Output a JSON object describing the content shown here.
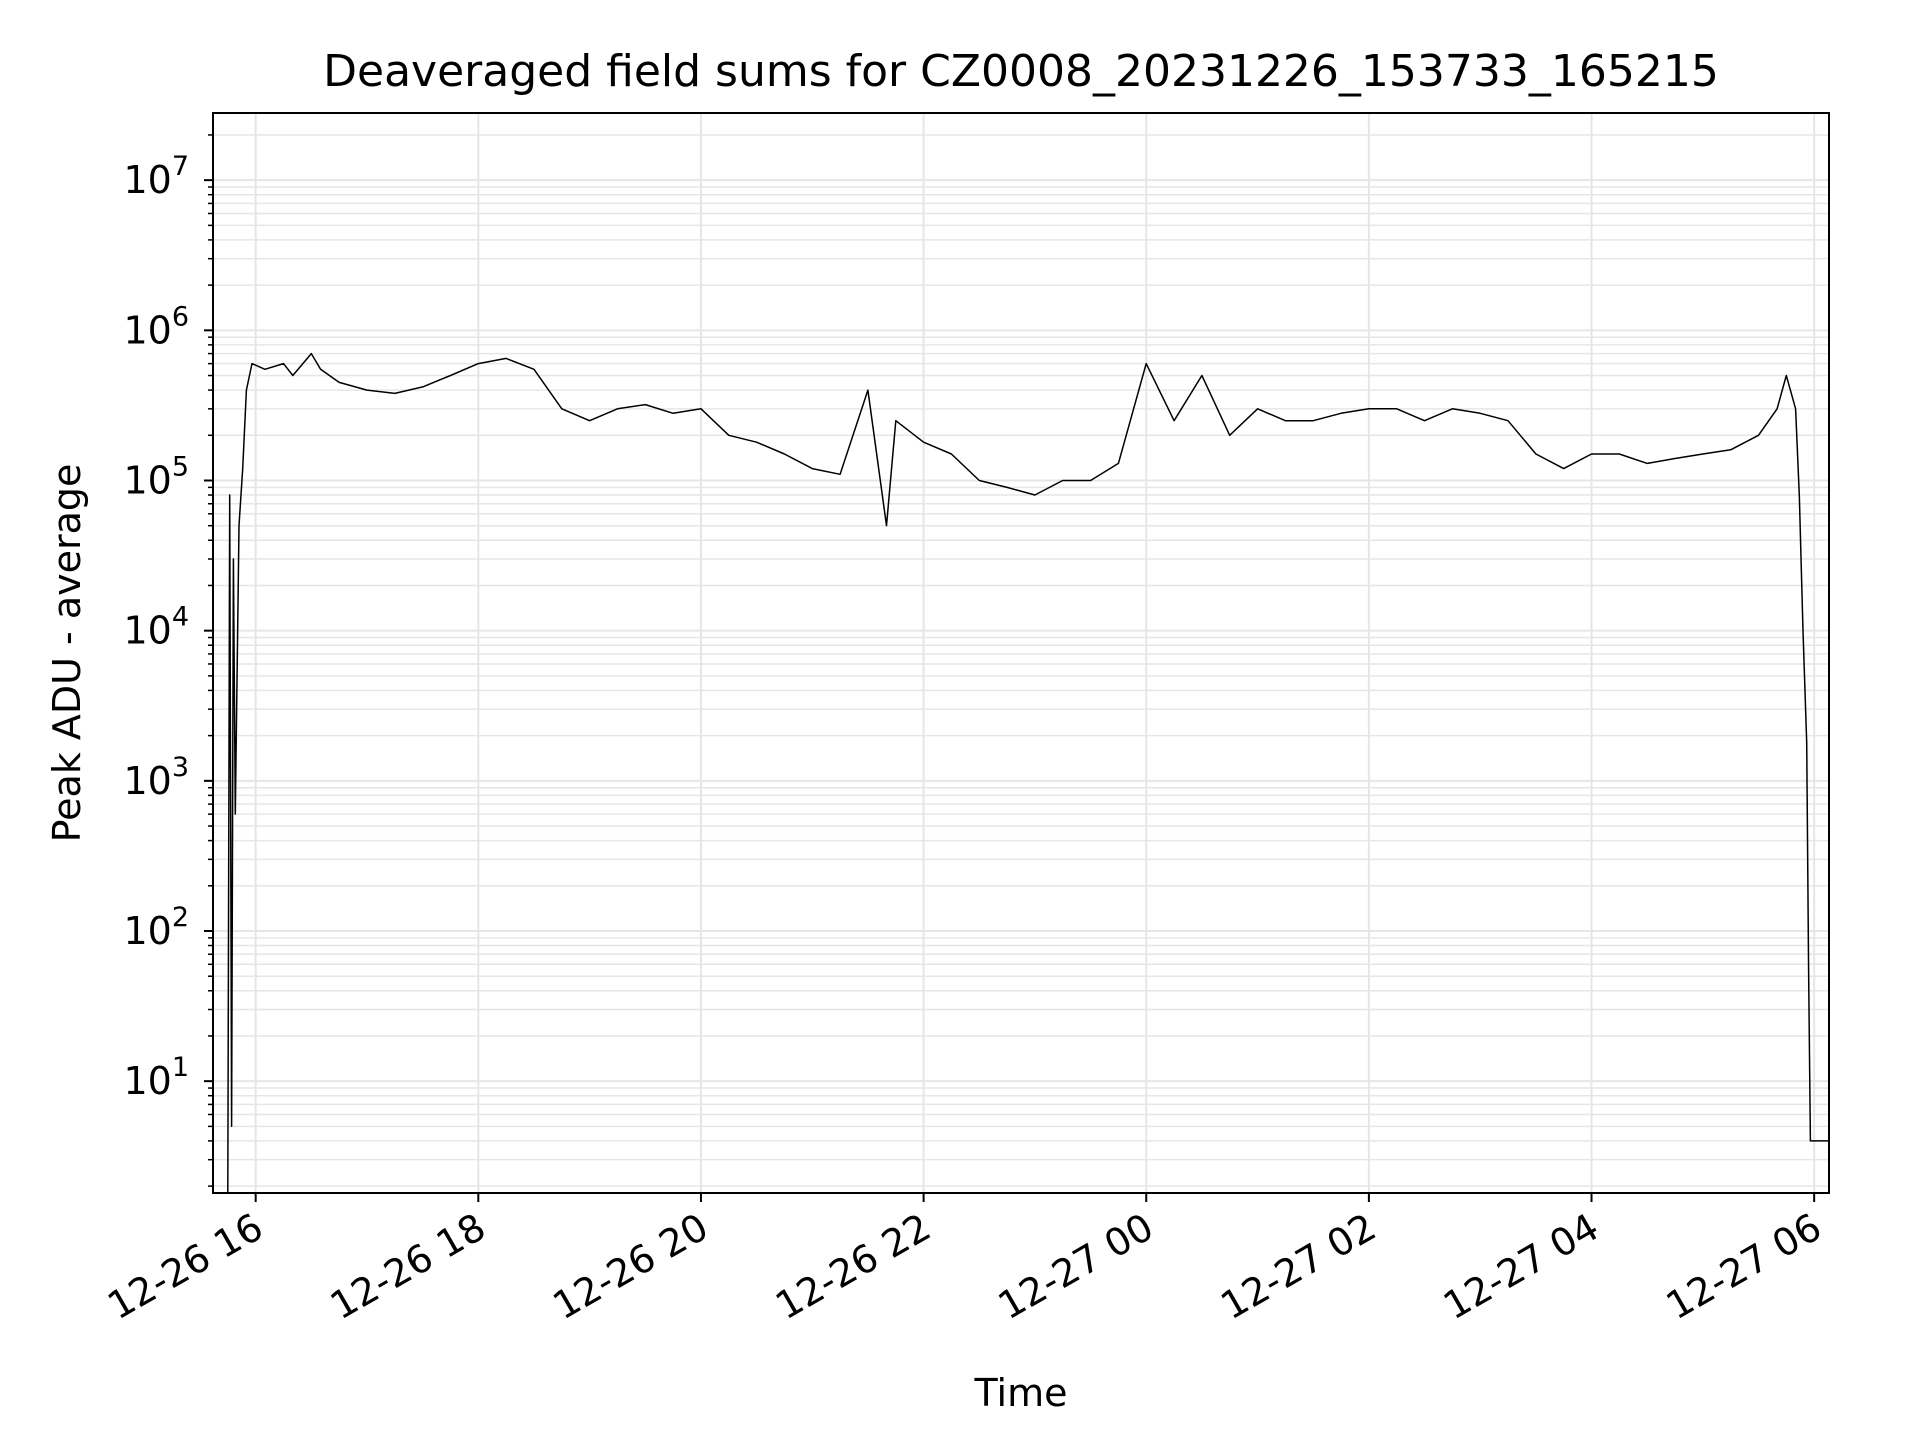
{
  "chart_data": {
    "type": "line",
    "title": "Deaveraged field sums for CZ0008_20231226_153733_165215",
    "xlabel": "Time",
    "ylabel": "Peak ADU - average",
    "yscale": "log",
    "grid": true,
    "line_color": "#000000",
    "grid_color": "#e6e6e6",
    "xlim": [
      "2023-12-26 15:37",
      "2023-12-27 06:08"
    ],
    "ylim": [
      1.8,
      28000000
    ],
    "x_ticks": [
      {
        "value": "2023-12-26 16:00",
        "label": "12-26 16"
      },
      {
        "value": "2023-12-26 18:00",
        "label": "12-26 18"
      },
      {
        "value": "2023-12-26 20:00",
        "label": "12-26 20"
      },
      {
        "value": "2023-12-26 22:00",
        "label": "12-26 22"
      },
      {
        "value": "2023-12-27 00:00",
        "label": "12-27 00"
      },
      {
        "value": "2023-12-27 02:00",
        "label": "12-27 02"
      },
      {
        "value": "2023-12-27 04:00",
        "label": "12-27 04"
      },
      {
        "value": "2023-12-27 06:00",
        "label": "12-27 06"
      }
    ],
    "y_ticks": [
      {
        "value": 10,
        "base": "10",
        "exp": "1"
      },
      {
        "value": 100,
        "base": "10",
        "exp": "2"
      },
      {
        "value": 1000,
        "base": "10",
        "exp": "3"
      },
      {
        "value": 10000,
        "base": "10",
        "exp": "4"
      },
      {
        "value": 100000,
        "base": "10",
        "exp": "5"
      },
      {
        "value": 1000000,
        "base": "10",
        "exp": "6"
      },
      {
        "value": 10000000,
        "base": "10",
        "exp": "7"
      }
    ],
    "series": [
      {
        "x": [
          "2023-12-26 15:45",
          "2023-12-26 15:46",
          "2023-12-26 15:47",
          "2023-12-26 15:48",
          "2023-12-26 15:49",
          "2023-12-26 15:51",
          "2023-12-26 15:53",
          "2023-12-26 15:55",
          "2023-12-26 15:58",
          "2023-12-26 16:05",
          "2023-12-26 16:15",
          "2023-12-26 16:20",
          "2023-12-26 16:30",
          "2023-12-26 16:35",
          "2023-12-26 16:45",
          "2023-12-26 17:00",
          "2023-12-26 17:15",
          "2023-12-26 17:30",
          "2023-12-26 17:45",
          "2023-12-26 18:00",
          "2023-12-26 18:15",
          "2023-12-26 18:30",
          "2023-12-26 18:45",
          "2023-12-26 19:00",
          "2023-12-26 19:15",
          "2023-12-26 19:30",
          "2023-12-26 19:45",
          "2023-12-26 20:00",
          "2023-12-26 20:15",
          "2023-12-26 20:30",
          "2023-12-26 20:45",
          "2023-12-26 21:00",
          "2023-12-26 21:15",
          "2023-12-26 21:30",
          "2023-12-26 21:40",
          "2023-12-26 21:45",
          "2023-12-26 22:00",
          "2023-12-26 22:15",
          "2023-12-26 22:30",
          "2023-12-26 22:45",
          "2023-12-26 23:00",
          "2023-12-26 23:15",
          "2023-12-26 23:30",
          "2023-12-26 23:45",
          "2023-12-27 00:00",
          "2023-12-27 00:15",
          "2023-12-27 00:30",
          "2023-12-27 00:45",
          "2023-12-27 01:00",
          "2023-12-27 01:15",
          "2023-12-27 01:30",
          "2023-12-27 01:45",
          "2023-12-27 02:00",
          "2023-12-27 02:15",
          "2023-12-27 02:30",
          "2023-12-27 02:45",
          "2023-12-27 03:00",
          "2023-12-27 03:15",
          "2023-12-27 03:30",
          "2023-12-27 03:45",
          "2023-12-27 04:00",
          "2023-12-27 04:15",
          "2023-12-27 04:30",
          "2023-12-27 04:45",
          "2023-12-27 05:00",
          "2023-12-27 05:15",
          "2023-12-27 05:30",
          "2023-12-27 05:40",
          "2023-12-27 05:45",
          "2023-12-27 05:50",
          "2023-12-27 05:52",
          "2023-12-27 05:54",
          "2023-12-27 05:56",
          "2023-12-27 05:57",
          "2023-12-27 05:58",
          "2023-12-27 06:00",
          "2023-12-27 06:05",
          "2023-12-27 06:08"
        ],
        "y": [
          1.8,
          80000,
          5,
          30000,
          600,
          50000,
          120000,
          400000,
          600000,
          550000,
          600000,
          500000,
          700000,
          550000,
          450000,
          400000,
          380000,
          420000,
          500000,
          600000,
          650000,
          550000,
          300000,
          250000,
          300000,
          320000,
          280000,
          300000,
          200000,
          180000,
          150000,
          120000,
          110000,
          400000,
          50000,
          250000,
          180000,
          150000,
          100000,
          90000,
          80000,
          100000,
          100000,
          130000,
          600000,
          250000,
          500000,
          200000,
          300000,
          250000,
          250000,
          280000,
          300000,
          300000,
          250000,
          300000,
          280000,
          250000,
          150000,
          120000,
          150000,
          150000,
          130000,
          140000,
          150000,
          160000,
          200000,
          300000,
          500000,
          300000,
          80000,
          10000,
          1800,
          55,
          4,
          4,
          4,
          4
        ]
      }
    ]
  }
}
